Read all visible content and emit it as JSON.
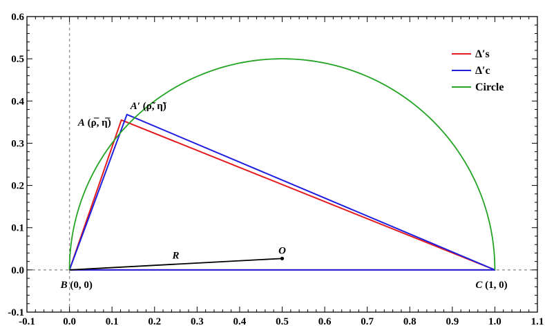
{
  "chart_data": {
    "type": "line",
    "title": "",
    "xlabel": "",
    "ylabel": "",
    "xlim": [
      -0.1,
      1.1
    ],
    "ylim": [
      -0.1,
      0.6
    ],
    "x_ticks": [
      "-0.1",
      "0.0",
      "0.1",
      "0.2",
      "0.3",
      "0.4",
      "0.5",
      "0.6",
      "0.7",
      "0.8",
      "0.9",
      "1.0",
      "1.1"
    ],
    "y_ticks": [
      "-0.1",
      "0.0",
      "0.1",
      "0.2",
      "0.3",
      "0.4",
      "0.5",
      "0.6"
    ],
    "grid": false,
    "legend_position": "top-right",
    "series": [
      {
        "name": "Δ′s",
        "color": "#e41a1c",
        "points": [
          [
            0.0,
            0.0
          ],
          [
            0.122,
            0.355
          ],
          [
            1.0,
            0.0
          ],
          [
            0.0,
            0.0
          ]
        ]
      },
      {
        "name": "Δ′c",
        "color": "#1f1fe0",
        "points": [
          [
            0.0,
            0.0
          ],
          [
            0.135,
            0.368
          ],
          [
            1.0,
            0.0
          ],
          [
            0.0,
            0.0
          ]
        ]
      },
      {
        "name": "Circle",
        "color": "#23a323",
        "center": [
          0.5,
          0.0
        ],
        "radius": 0.5
      }
    ],
    "radius_segment": {
      "label": "R",
      "color": "#000000",
      "from": [
        0.0,
        0.0
      ],
      "to": [
        0.5,
        0.027
      ]
    },
    "reference_lines": [
      {
        "orientation": "vertical",
        "value": 0.0,
        "style": "dashed",
        "color": "#888888"
      },
      {
        "orientation": "horizontal",
        "value": 0.0,
        "style": "dashed",
        "color": "#888888"
      }
    ],
    "points": [
      {
        "label": "B",
        "coords_text": "(0, 0)",
        "x": 0.0,
        "y": 0.0
      },
      {
        "label": "C",
        "coords_text": "(1, 0)",
        "x": 1.0,
        "y": 0.0
      },
      {
        "label": "O",
        "coords_text": "",
        "x": 0.5,
        "y": 0.027
      },
      {
        "label": "A",
        "coords_text": "(ρ̅, η̅)",
        "x": 0.122,
        "y": 0.355
      },
      {
        "label": "A′",
        "coords_text": "(ρ̃, η̃)",
        "x": 0.135,
        "y": 0.368
      }
    ]
  }
}
